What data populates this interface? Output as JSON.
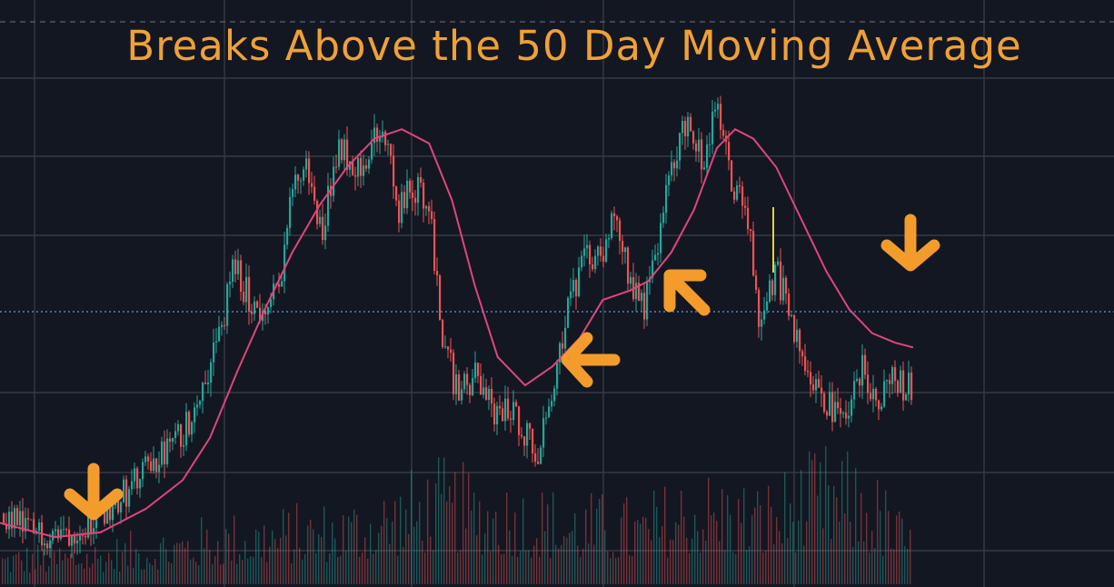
{
  "chart_data": {
    "type": "candlestick",
    "title": "Breaks Above the 50 Day Moving Average",
    "xlabel": "",
    "ylabel": "",
    "grid": true,
    "ylim": [
      0,
      100
    ],
    "candle_path": [
      [
        0,
        9
      ],
      [
        30,
        5
      ],
      [
        70,
        5
      ],
      [
        110,
        9
      ],
      [
        150,
        16
      ],
      [
        200,
        26
      ],
      [
        220,
        36
      ],
      [
        240,
        47
      ],
      [
        255,
        61
      ],
      [
        270,
        55
      ],
      [
        290,
        50
      ],
      [
        305,
        58
      ],
      [
        320,
        78
      ],
      [
        335,
        82
      ],
      [
        350,
        68
      ],
      [
        370,
        87
      ],
      [
        390,
        82
      ],
      [
        420,
        90
      ],
      [
        435,
        72
      ],
      [
        450,
        78
      ],
      [
        470,
        75
      ],
      [
        480,
        50
      ],
      [
        500,
        34
      ],
      [
        520,
        38
      ],
      [
        540,
        30
      ],
      [
        560,
        31
      ],
      [
        575,
        26
      ],
      [
        590,
        22
      ],
      [
        605,
        37
      ],
      [
        620,
        52
      ],
      [
        640,
        62
      ],
      [
        660,
        65
      ],
      [
        675,
        72
      ],
      [
        690,
        57
      ],
      [
        705,
        53
      ],
      [
        720,
        67
      ],
      [
        735,
        82
      ],
      [
        750,
        92
      ],
      [
        770,
        83
      ],
      [
        785,
        95
      ],
      [
        800,
        78
      ],
      [
        815,
        75
      ],
      [
        830,
        50
      ],
      [
        850,
        60
      ],
      [
        870,
        46
      ],
      [
        890,
        38
      ],
      [
        905,
        32
      ],
      [
        920,
        28
      ],
      [
        935,
        35
      ],
      [
        945,
        40
      ],
      [
        960,
        32
      ],
      [
        975,
        38
      ],
      [
        990,
        35
      ],
      [
        1000,
        37
      ]
    ],
    "ma50_path": [
      [
        0,
        7
      ],
      [
        60,
        4
      ],
      [
        110,
        5
      ],
      [
        160,
        10
      ],
      [
        200,
        16
      ],
      [
        230,
        25
      ],
      [
        260,
        39
      ],
      [
        290,
        52
      ],
      [
        320,
        64
      ],
      [
        350,
        74
      ],
      [
        380,
        82
      ],
      [
        410,
        88
      ],
      [
        440,
        90
      ],
      [
        470,
        87
      ],
      [
        495,
        75
      ],
      [
        520,
        57
      ],
      [
        545,
        42
      ],
      [
        575,
        36
      ],
      [
        605,
        40
      ],
      [
        635,
        46
      ],
      [
        660,
        54
      ],
      [
        690,
        56
      ],
      [
        710,
        58
      ],
      [
        735,
        64
      ],
      [
        760,
        73
      ],
      [
        785,
        86
      ],
      [
        805,
        90
      ],
      [
        825,
        88
      ],
      [
        850,
        82
      ],
      [
        880,
        70
      ],
      [
        905,
        60
      ],
      [
        930,
        52
      ],
      [
        955,
        47
      ],
      [
        980,
        45
      ],
      [
        1000,
        44
      ]
    ],
    "volume_profile": [
      [
        0,
        0.25
      ],
      [
        120,
        0.3
      ],
      [
        240,
        0.45
      ],
      [
        380,
        0.55
      ],
      [
        480,
        0.8
      ],
      [
        540,
        0.7
      ],
      [
        620,
        0.6
      ],
      [
        700,
        0.55
      ],
      [
        760,
        0.75
      ],
      [
        830,
        0.65
      ],
      [
        910,
        0.9
      ],
      [
        960,
        0.7
      ],
      [
        1000,
        0.35
      ]
    ],
    "arrows": [
      {
        "name": "arrow-down-start",
        "direction": "down"
      },
      {
        "name": "arrow-left-middle",
        "direction": "left"
      },
      {
        "name": "arrow-up-left-middle",
        "direction": "up-left"
      },
      {
        "name": "arrow-down-end",
        "direction": "down"
      }
    ],
    "colors": {
      "background": "#131722",
      "grid": "#363a45",
      "up_candle": "#26a69a",
      "down_candle": "#ef5350",
      "moving_average": "#e0457b",
      "annotation": "#f39c2c",
      "price_line": "#5b9bd5"
    }
  }
}
